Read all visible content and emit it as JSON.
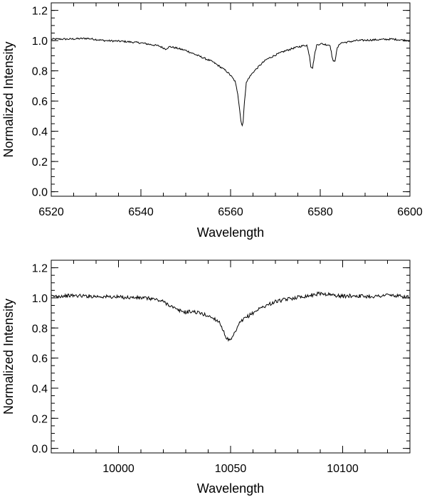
{
  "chart_data": [
    {
      "type": "line",
      "xlabel": "Wavelength",
      "ylabel": "Normalized Intensity",
      "xlim": [
        6520,
        6600
      ],
      "ylim": [
        -0.03,
        1.25
      ],
      "x_ticks": [
        "6520",
        "6540",
        "6560",
        "6580",
        "6600"
      ],
      "y_ticks": [
        "0.0",
        "0.2",
        "0.4",
        "0.6",
        "0.8",
        "1.0",
        "1.2"
      ],
      "grid": false,
      "series": [
        {
          "x": [
            6520,
            6524,
            6528,
            6532,
            6536,
            6540,
            6542,
            6544,
            6545.5,
            6546.5,
            6548,
            6550,
            6552,
            6554,
            6556,
            6558,
            6559,
            6560,
            6561,
            6561.6,
            6562,
            6562.3,
            6562.6,
            6562.8,
            6563.1,
            6563.5,
            6564,
            6565,
            6566,
            6567,
            6568,
            6570,
            6572,
            6574,
            6576,
            6577,
            6577.6,
            6577.9,
            6578.3,
            6578.7,
            6579.2,
            6580,
            6581,
            6582.2,
            6582.6,
            6582.9,
            6583.3,
            6583.8,
            6584.5,
            6586,
            6588,
            6592,
            6596,
            6600
          ],
          "y": [
            1.01,
            1.01,
            1.015,
            1.0,
            0.995,
            0.985,
            0.975,
            0.965,
            0.945,
            0.96,
            0.95,
            0.935,
            0.91,
            0.885,
            0.86,
            0.82,
            0.8,
            0.77,
            0.73,
            0.65,
            0.55,
            0.47,
            0.44,
            0.46,
            0.6,
            0.72,
            0.75,
            0.79,
            0.82,
            0.85,
            0.875,
            0.905,
            0.93,
            0.95,
            0.965,
            0.97,
            0.9,
            0.83,
            0.82,
            0.9,
            0.97,
            0.98,
            0.975,
            0.97,
            0.9,
            0.86,
            0.87,
            0.95,
            0.985,
            0.99,
            1.0,
            1.005,
            1.01,
            1.0
          ]
        }
      ]
    },
    {
      "type": "line",
      "xlabel": "Wavelength",
      "ylabel": "Normalized Intensity",
      "xlim": [
        9970,
        10130
      ],
      "ylim": [
        -0.03,
        1.25
      ],
      "x_ticks": [
        "10000",
        "10050",
        "10100"
      ],
      "y_ticks": [
        "0.0",
        "0.2",
        "0.4",
        "0.6",
        "0.8",
        "1.0",
        "1.2"
      ],
      "grid": false,
      "series": [
        {
          "x": [
            9970,
            9980,
            9990,
            10000,
            10010,
            10015,
            10020,
            10023,
            10026,
            10030,
            10033,
            10036,
            10040,
            10043,
            10045,
            10046,
            10047,
            10048,
            10049,
            10050,
            10051,
            10052,
            10054,
            10056,
            10058,
            10060,
            10063,
            10066,
            10070,
            10075,
            10080,
            10085,
            10090,
            10095,
            10100,
            10105,
            10110,
            10115,
            10120,
            10125,
            10130
          ],
          "y": [
            1.01,
            1.015,
            1.01,
            1.005,
            1.0,
            0.995,
            0.975,
            0.95,
            0.92,
            0.905,
            0.91,
            0.9,
            0.88,
            0.86,
            0.84,
            0.81,
            0.77,
            0.74,
            0.72,
            0.715,
            0.74,
            0.77,
            0.83,
            0.86,
            0.88,
            0.9,
            0.93,
            0.95,
            0.975,
            0.99,
            1.005,
            1.015,
            1.03,
            1.02,
            1.01,
            1.015,
            1.01,
            1.01,
            1.02,
            1.01,
            1.005
          ]
        }
      ]
    }
  ]
}
